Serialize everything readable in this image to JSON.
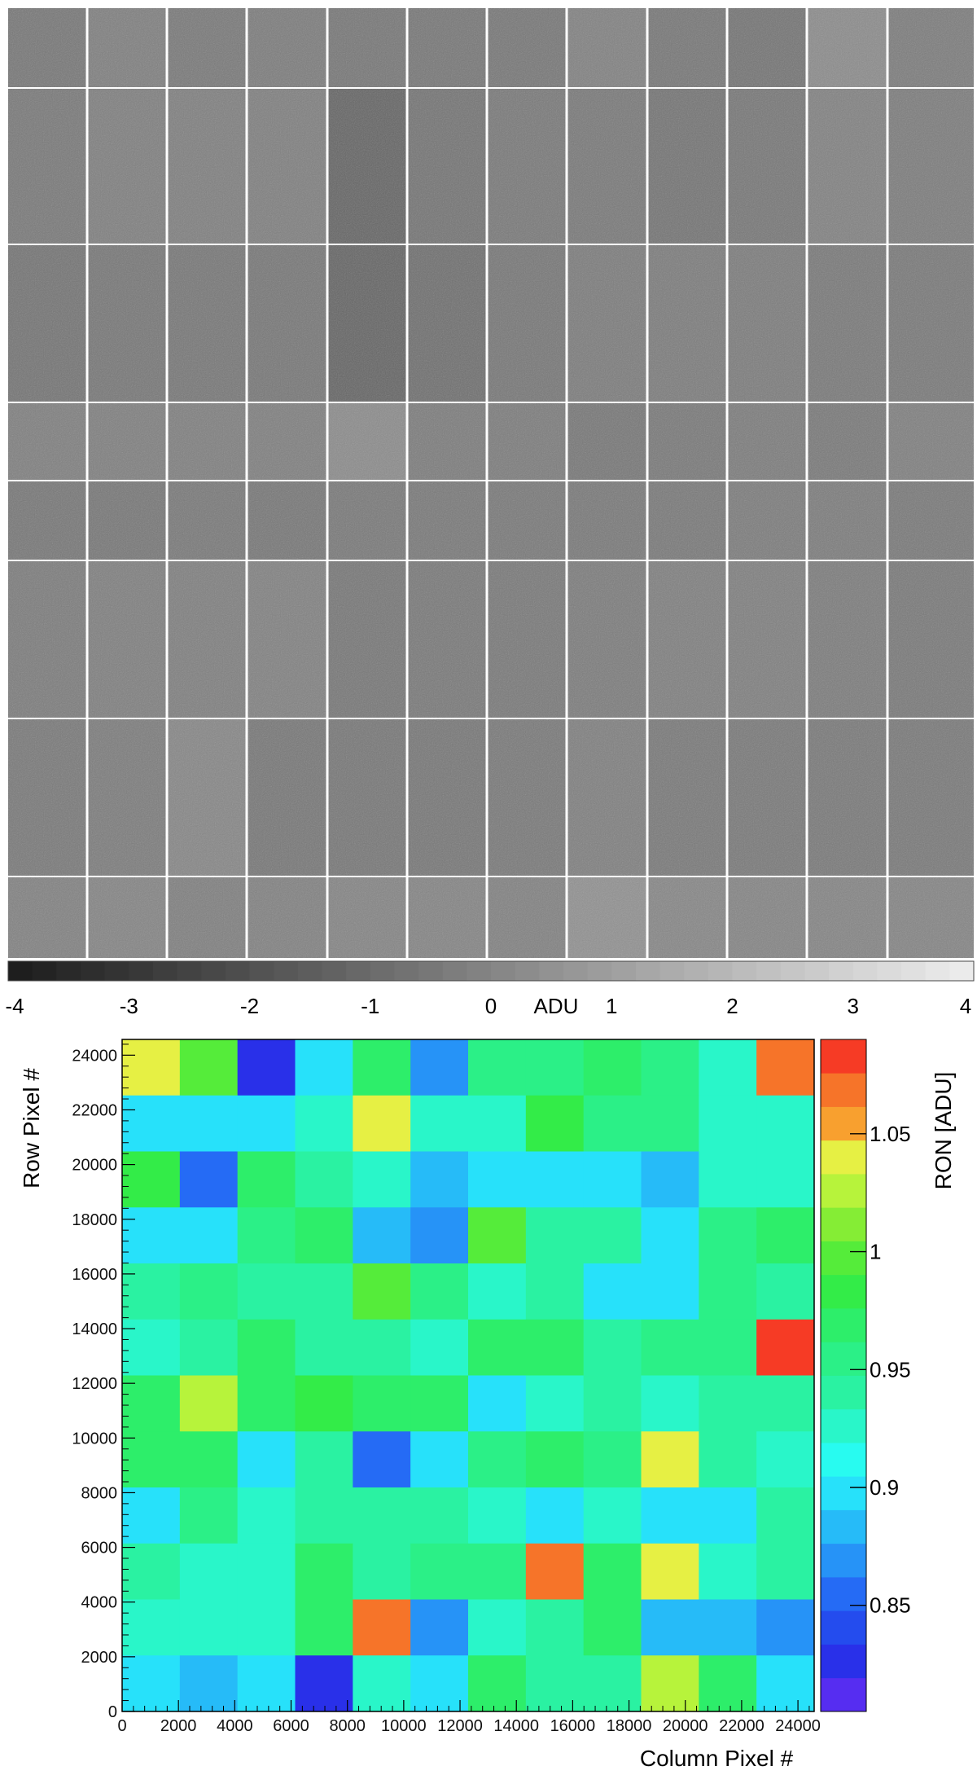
{
  "chart_data": [
    {
      "type": "heatmap",
      "style": "grayscale noise image of CCD segments",
      "colorbar": {
        "orientation": "horizontal",
        "range": [
          -4,
          4
        ],
        "tick_labels": [
          "-4",
          "-3",
          "-2",
          "-1",
          "0",
          "1",
          "2",
          "3",
          "4"
        ],
        "unit_label": "ADU",
        "colormap": "gray"
      },
      "segment_grid": {
        "columns": 12,
        "rows": 8
      },
      "segment_shading_rows_top_to_bottom": [
        [
          0.47,
          0.5,
          0.48,
          0.49,
          0.47,
          0.47,
          0.47,
          0.51,
          0.47,
          0.46,
          0.55,
          0.49
        ],
        [
          0.48,
          0.5,
          0.5,
          0.5,
          0.4,
          0.46,
          0.48,
          0.48,
          0.46,
          0.47,
          0.51,
          0.49
        ],
        [
          0.46,
          0.47,
          0.47,
          0.47,
          0.4,
          0.44,
          0.47,
          0.49,
          0.49,
          0.49,
          0.48,
          0.48
        ],
        [
          0.5,
          0.5,
          0.5,
          0.5,
          0.55,
          0.49,
          0.49,
          0.47,
          0.48,
          0.49,
          0.48,
          0.5
        ],
        [
          0.47,
          0.47,
          0.48,
          0.47,
          0.48,
          0.48,
          0.48,
          0.48,
          0.48,
          0.49,
          0.49,
          0.48
        ],
        [
          0.49,
          0.5,
          0.5,
          0.51,
          0.47,
          0.48,
          0.48,
          0.49,
          0.5,
          0.5,
          0.49,
          0.48
        ],
        [
          0.48,
          0.49,
          0.53,
          0.47,
          0.47,
          0.47,
          0.48,
          0.5,
          0.48,
          0.48,
          0.48,
          0.48
        ],
        [
          0.51,
          0.52,
          0.5,
          0.51,
          0.52,
          0.52,
          0.51,
          0.57,
          0.53,
          0.52,
          0.52,
          0.52
        ]
      ]
    },
    {
      "type": "heatmap",
      "xlabel": "Column Pixel #",
      "ylabel": "Row Pixel #",
      "colorbar_label": "RON [ADU]",
      "xlim": [
        0,
        24576
      ],
      "ylim": [
        0,
        24576
      ],
      "x_ticks": [
        0,
        2000,
        4000,
        6000,
        8000,
        10000,
        12000,
        14000,
        16000,
        18000,
        20000,
        22000,
        24000
      ],
      "y_ticks": [
        0,
        2000,
        4000,
        6000,
        8000,
        10000,
        12000,
        14000,
        16000,
        18000,
        20000,
        22000,
        24000
      ],
      "cell_size": 2048,
      "zlim": [
        0.805,
        1.09
      ],
      "colorbar_ticks": [
        0.85,
        0.9,
        0.95,
        1,
        1.05
      ],
      "colorbar_tick_labels": [
        "0.85",
        "0.9",
        "0.95",
        "1",
        "1.05"
      ],
      "colorbar_levels": 20,
      "colormap": "rainbow (violet-blue-cyan-green-yellow-red)",
      "values_rows_top_to_bottom": [
        [
          1.045,
          1.0,
          0.82,
          0.9,
          0.965,
          0.87,
          0.955,
          0.955,
          0.97,
          0.955,
          0.93,
          1.065
        ],
        [
          0.9,
          0.9,
          0.9,
          0.93,
          1.045,
          0.93,
          0.93,
          0.985,
          0.955,
          0.955,
          0.93,
          0.93
        ],
        [
          0.985,
          0.85,
          0.965,
          0.94,
          0.925,
          0.88,
          0.9,
          0.9,
          0.9,
          0.88,
          0.925,
          0.925
        ],
        [
          0.9,
          0.9,
          0.955,
          0.965,
          0.88,
          0.87,
          1.0,
          0.945,
          0.945,
          0.9,
          0.955,
          0.965
        ],
        [
          0.945,
          0.955,
          0.935,
          0.935,
          1.0,
          0.955,
          0.92,
          0.945,
          0.9,
          0.9,
          0.955,
          0.935
        ],
        [
          0.925,
          0.94,
          0.965,
          0.94,
          0.94,
          0.925,
          0.965,
          0.975,
          0.945,
          0.96,
          0.96,
          1.085
        ],
        [
          0.975,
          1.025,
          0.965,
          0.985,
          0.965,
          0.965,
          0.9,
          0.925,
          0.945,
          0.925,
          0.94,
          0.94
        ],
        [
          0.965,
          0.965,
          0.9,
          0.94,
          0.85,
          0.9,
          0.95,
          0.965,
          0.95,
          1.045,
          0.945,
          0.925
        ],
        [
          0.9,
          0.955,
          0.925,
          0.94,
          0.94,
          0.94,
          0.925,
          0.9,
          0.92,
          0.9,
          0.9,
          0.935
        ],
        [
          0.945,
          0.925,
          0.925,
          0.965,
          0.935,
          0.955,
          0.955,
          1.075,
          0.965,
          1.045,
          0.925,
          0.935
        ],
        [
          0.925,
          0.925,
          0.925,
          0.965,
          1.065,
          0.87,
          0.925,
          0.94,
          0.965,
          0.88,
          0.88,
          0.87
        ],
        [
          0.9,
          0.88,
          0.9,
          0.82,
          0.925,
          0.9,
          0.965,
          0.935,
          0.945,
          1.025,
          0.965,
          0.9
        ]
      ]
    }
  ]
}
